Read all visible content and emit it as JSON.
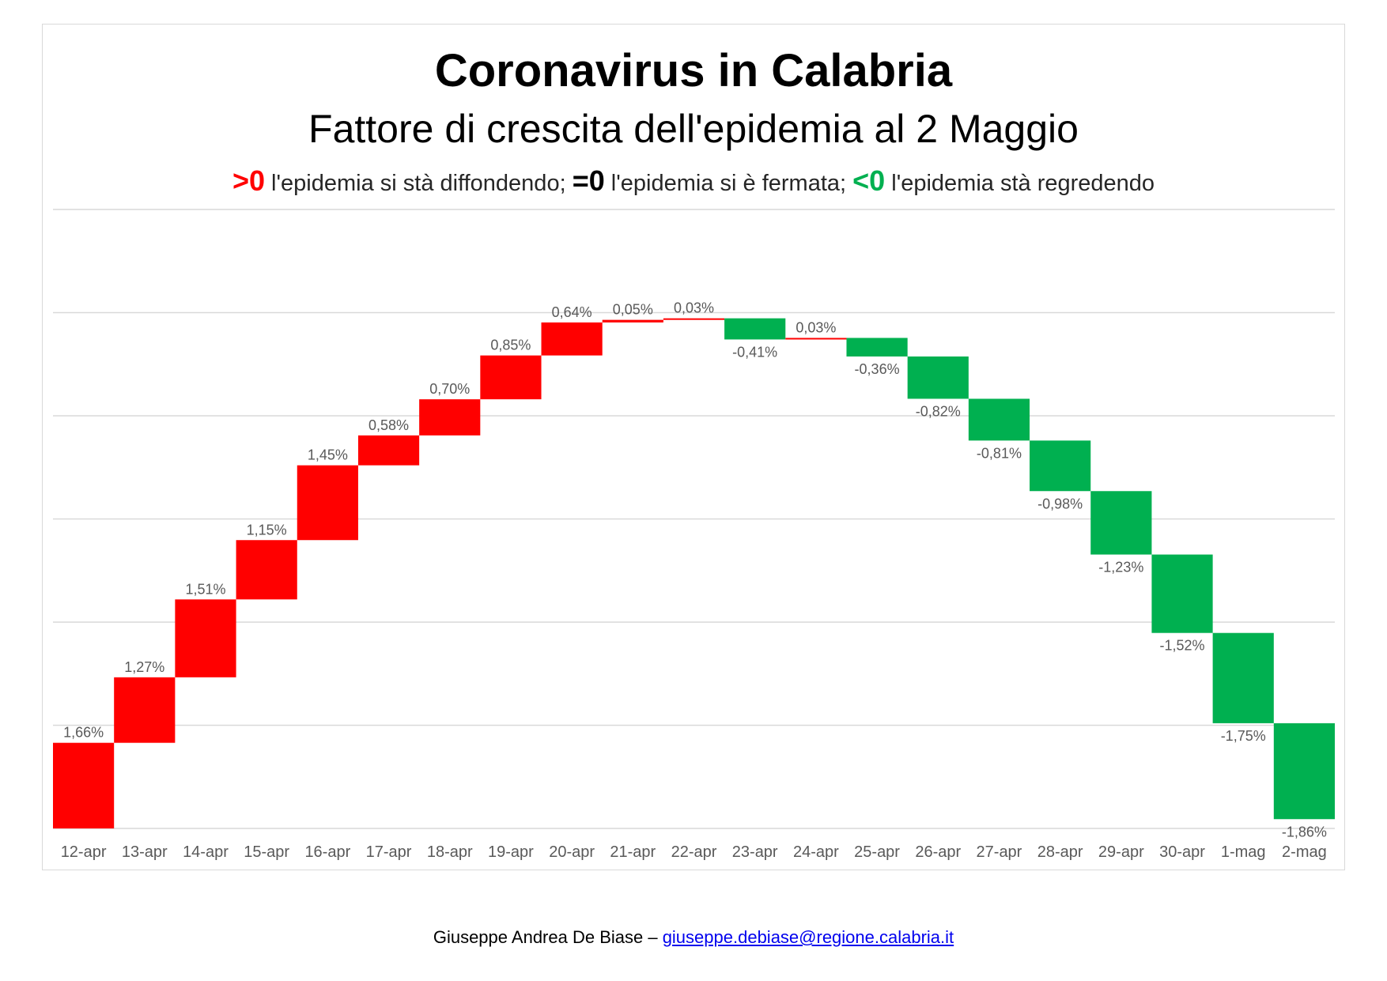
{
  "chart_data": {
    "type": "waterfall",
    "title": "Coronavirus in Calabria",
    "subtitle": "Fattore di crescita dell'epidemia al 2 Maggio",
    "legend": {
      "pos_symbol": ">0",
      "pos_text": " l'epidemia si stà diffondendo; ",
      "zero_symbol": "=0",
      "zero_text": " l'epidemia si è fermata; ",
      "neg_symbol": "<0",
      "neg_text": " l'epidemia stà regredendo"
    },
    "categories": [
      "12-apr",
      "13-apr",
      "14-apr",
      "15-apr",
      "16-apr",
      "17-apr",
      "18-apr",
      "19-apr",
      "20-apr",
      "21-apr",
      "22-apr",
      "23-apr",
      "24-apr",
      "25-apr",
      "26-apr",
      "27-apr",
      "28-apr",
      "29-apr",
      "30-apr",
      "1-mag",
      "2-mag"
    ],
    "values": [
      1.66,
      1.27,
      1.51,
      1.15,
      1.45,
      0.58,
      0.7,
      0.85,
      0.64,
      0.05,
      0.03,
      -0.41,
      0.03,
      -0.36,
      -0.82,
      -0.81,
      -0.98,
      -1.23,
      -1.52,
      -1.75,
      -1.86
    ],
    "labels": [
      "1,66%",
      "1,27%",
      "1,51%",
      "1,15%",
      "1,45%",
      "0,58%",
      "0,70%",
      "0,85%",
      "0,64%",
      "0,05%",
      "0,03%",
      "-0,41%",
      "0,03%",
      "-0,36%",
      "-0,82%",
      "-0,81%",
      "-0,98%",
      "-1,23%",
      "-1,52%",
      "-1,75%",
      "-1,86%"
    ],
    "ylim": [
      0,
      12
    ],
    "grid": true,
    "colors": {
      "positive": "#ff0000",
      "negative": "#00b050",
      "grid": "#d9d9d9",
      "label": "#595959"
    }
  },
  "footer": {
    "author": "Giuseppe Andrea De Biase – ",
    "email": "giuseppe.debiase@regione.calabria.it"
  }
}
